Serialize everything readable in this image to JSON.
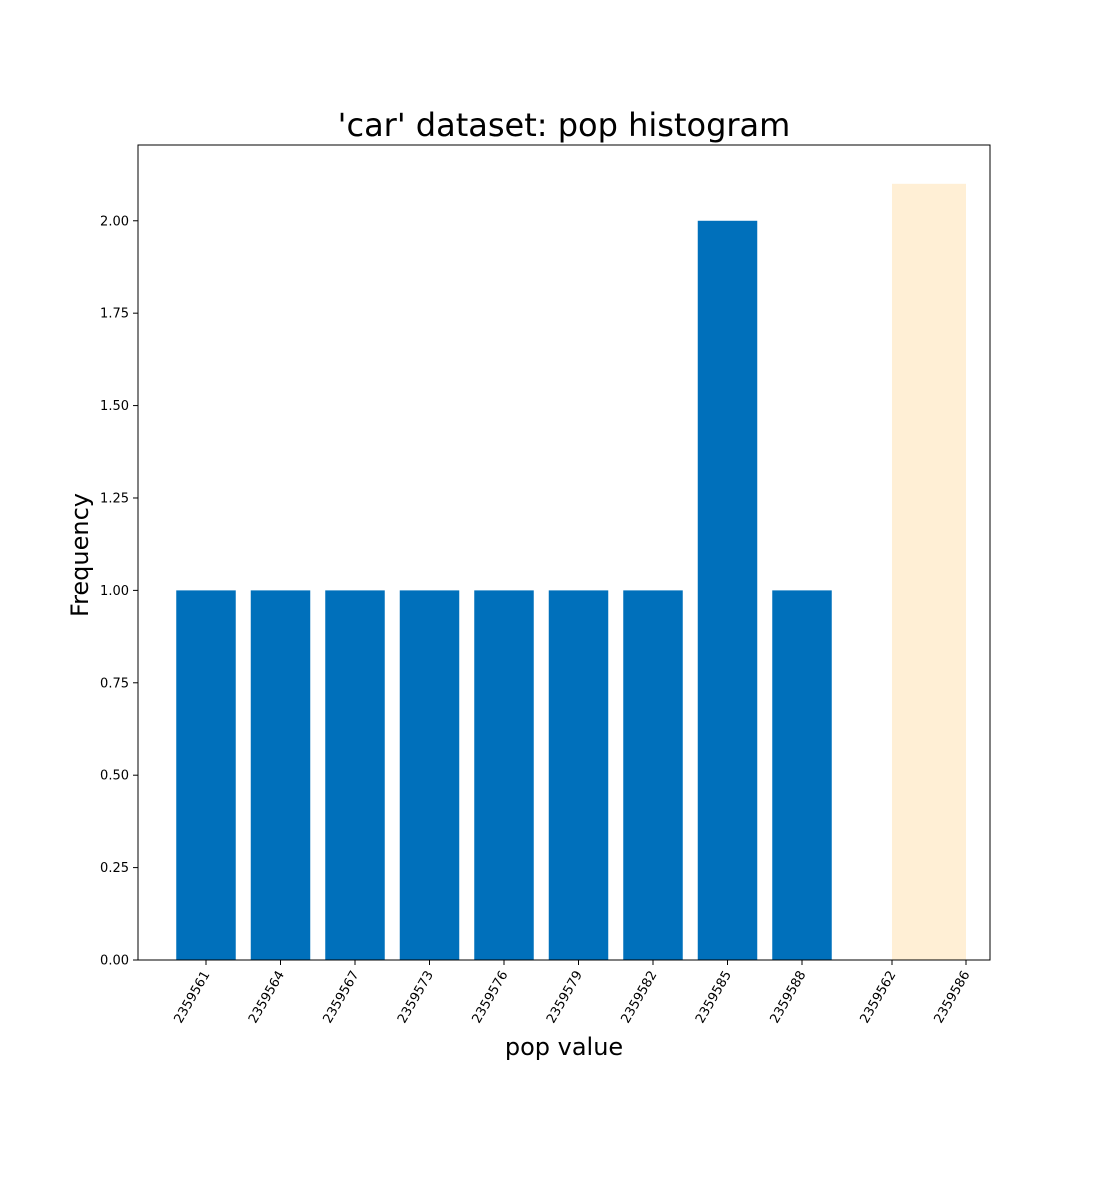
{
  "chart_data": {
    "type": "bar",
    "title": "'car' dataset: pop histogram",
    "xlabel": "pop value",
    "ylabel": "Frequency",
    "ylim": [
      0,
      2.205
    ],
    "yticks": [
      "0.00",
      "0.25",
      "0.50",
      "0.75",
      "1.00",
      "1.25",
      "1.50",
      "1.75",
      "2.00"
    ],
    "categories": [
      "2359561",
      "2359564",
      "2359567",
      "2359573",
      "2359576",
      "2359579",
      "2359582",
      "2359585",
      "2359588"
    ],
    "values": [
      1,
      1,
      1,
      1,
      1,
      1,
      1,
      2,
      1
    ],
    "highlight_span": {
      "from_tick": "2359562",
      "to_tick": "2359586",
      "height": 2.1
    },
    "extra_tick_labels": [
      "2359562",
      "2359586"
    ],
    "grid": false,
    "colors": {
      "bar": "#0070bb",
      "highlight": "#ffefd5"
    }
  }
}
